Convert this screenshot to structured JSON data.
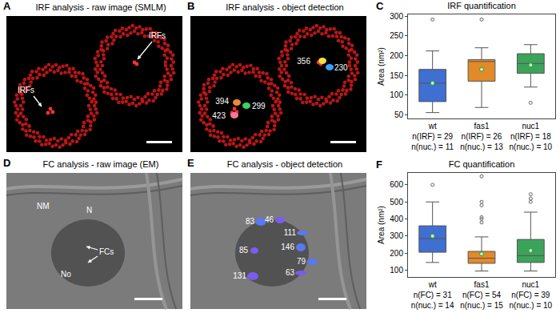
{
  "images": [
    {
      "letter": "A",
      "title": "IRF analysis - raw image (SMLM)",
      "labels": [
        "IRFs",
        "IRFs"
      ]
    },
    {
      "letter": "B",
      "title": "IRF analysis - object detection",
      "object_areas": [
        356,
        230,
        394,
        299,
        423
      ]
    },
    {
      "letter": "D",
      "title": "FC analysis - raw image (EM)",
      "labels": [
        "NM",
        "N",
        "FCs",
        "No"
      ]
    },
    {
      "letter": "E",
      "title": "FC analysis - object detection",
      "object_areas": [
        83,
        46,
        111,
        85,
        146,
        131,
        79,
        63
      ]
    }
  ],
  "chart_data": [
    {
      "type": "box",
      "letter": "C",
      "title": "IRF quantification",
      "y_label": "Area (nm²)",
      "categories": [
        "wt",
        "fas1",
        "nuc1"
      ],
      "counts": [
        [
          "n(IRF) = 29",
          "n(nuc.) = 11"
        ],
        [
          "n(IRF) = 26",
          "n(nuc.) = 13"
        ],
        [
          "n(IRF) = 18",
          "n(nuc.) = 10"
        ]
      ],
      "boxes": [
        {
          "color": "#3f6fd1",
          "whisker_low": 55,
          "q1": 83,
          "median": 130,
          "q3": 165,
          "whisker_high": 212,
          "mean": 130,
          "outliers": [
            292
          ]
        },
        {
          "color": "#e2892a",
          "whisker_low": 68,
          "q1": 135,
          "median": 185,
          "q3": 190,
          "whisker_high": 220,
          "mean": 165,
          "outliers": [
            292
          ]
        },
        {
          "color": "#3ca35b",
          "whisker_low": 120,
          "q1": 155,
          "median": 180,
          "q3": 205,
          "whisker_high": 228,
          "mean": 176,
          "outliers": [
            80
          ]
        }
      ],
      "ylim": [
        40,
        305
      ],
      "yticks": [
        50,
        100,
        150,
        200,
        250,
        300
      ],
      "grid": false
    },
    {
      "type": "box",
      "letter": "F",
      "title": "FC quantification",
      "y_label": "Area (nm²)",
      "categories": [
        "wt",
        "fas1",
        "nuc1"
      ],
      "counts": [
        [
          "n(FC) = 31",
          "n(nuc.) = 14"
        ],
        [
          "n(FC) = 54",
          "n(nuc.) = 15"
        ],
        [
          "n(FC) = 39",
          "n(nuc.) = 10"
        ]
      ],
      "boxes": [
        {
          "color": "#3f6fd1",
          "whisker_low": 145,
          "q1": 205,
          "median": 285,
          "q3": 360,
          "whisker_high": 500,
          "mean": 300,
          "outliers": [
            600
          ]
        },
        {
          "color": "#e2892a",
          "whisker_low": 95,
          "q1": 140,
          "median": 170,
          "q3": 210,
          "whisker_high": 295,
          "mean": 195,
          "outliers": [
            380,
            400,
            410,
            480,
            500,
            650
          ]
        },
        {
          "color": "#3ca35b",
          "whisker_low": 95,
          "q1": 145,
          "median": 185,
          "q3": 280,
          "whisker_high": 440,
          "mean": 215,
          "outliers": [
            500,
            520,
            545
          ]
        }
      ],
      "ylim": [
        60,
        670
      ],
      "yticks": [
        100,
        200,
        300,
        400,
        500,
        600
      ],
      "grid": false
    }
  ]
}
